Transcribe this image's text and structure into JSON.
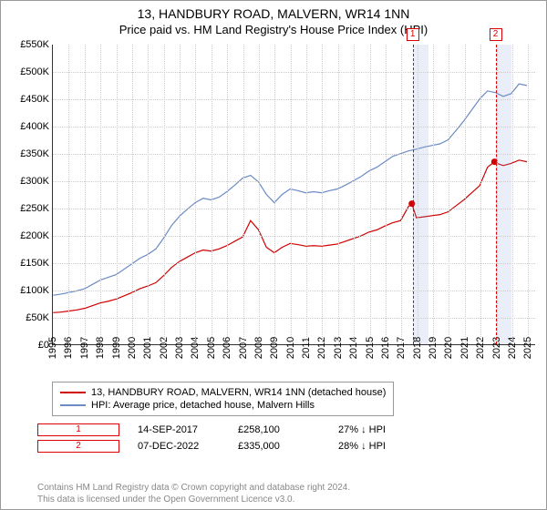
{
  "title": "13, HANDBURY ROAD, MALVERN, WR14 1NN",
  "subtitle": "Price paid vs. HM Land Registry's House Price Index (HPI)",
  "chart": {
    "type": "line",
    "xlim": [
      1995,
      2025.5
    ],
    "ylim": [
      0,
      550000
    ],
    "yticks": [
      0,
      50000,
      100000,
      150000,
      200000,
      250000,
      300000,
      350000,
      400000,
      450000,
      500000,
      550000
    ],
    "yticklabels": [
      "£0",
      "£50K",
      "£100K",
      "£150K",
      "£200K",
      "£250K",
      "£300K",
      "£350K",
      "£400K",
      "£450K",
      "£500K",
      "£550K"
    ],
    "xticks": [
      1995,
      1996,
      1997,
      1998,
      1999,
      2000,
      2001,
      2002,
      2003,
      2004,
      2005,
      2006,
      2007,
      2008,
      2009,
      2010,
      2011,
      2012,
      2013,
      2014,
      2015,
      2016,
      2017,
      2018,
      2019,
      2020,
      2021,
      2022,
      2023,
      2024,
      2025
    ],
    "grid_color": "#cccccc",
    "background_color": "#ffffff",
    "shaded_regions": [
      {
        "from": 2017.71,
        "to": 2018.71
      },
      {
        "from": 2022.94,
        "to": 2023.94
      }
    ],
    "shade_color": "rgba(135,162,214,0.18)",
    "series": [
      {
        "name": "hpi",
        "label": "HPI: Average price, detached house, Malvern Hills",
        "color": "#6a8bc5",
        "width": 1.2,
        "data": [
          [
            1995,
            90000
          ],
          [
            1995.5,
            92000
          ],
          [
            1996,
            95000
          ],
          [
            1996.5,
            98000
          ],
          [
            1997,
            102000
          ],
          [
            1997.5,
            110000
          ],
          [
            1998,
            118000
          ],
          [
            1998.5,
            123000
          ],
          [
            1999,
            128000
          ],
          [
            1999.5,
            138000
          ],
          [
            2000,
            148000
          ],
          [
            2000.5,
            158000
          ],
          [
            2001,
            165000
          ],
          [
            2001.5,
            175000
          ],
          [
            2002,
            195000
          ],
          [
            2002.5,
            218000
          ],
          [
            2003,
            235000
          ],
          [
            2003.5,
            248000
          ],
          [
            2004,
            260000
          ],
          [
            2004.5,
            268000
          ],
          [
            2005,
            265000
          ],
          [
            2005.5,
            270000
          ],
          [
            2006,
            280000
          ],
          [
            2006.5,
            292000
          ],
          [
            2007,
            305000
          ],
          [
            2007.5,
            310000
          ],
          [
            2008,
            298000
          ],
          [
            2008.5,
            275000
          ],
          [
            2009,
            260000
          ],
          [
            2009.5,
            275000
          ],
          [
            2010,
            285000
          ],
          [
            2010.5,
            282000
          ],
          [
            2011,
            278000
          ],
          [
            2011.5,
            280000
          ],
          [
            2012,
            278000
          ],
          [
            2012.5,
            282000
          ],
          [
            2013,
            285000
          ],
          [
            2013.5,
            292000
          ],
          [
            2014,
            300000
          ],
          [
            2014.5,
            308000
          ],
          [
            2015,
            318000
          ],
          [
            2015.5,
            325000
          ],
          [
            2016,
            335000
          ],
          [
            2016.5,
            345000
          ],
          [
            2017,
            350000
          ],
          [
            2017.5,
            355000
          ],
          [
            2018,
            358000
          ],
          [
            2018.5,
            362000
          ],
          [
            2019,
            365000
          ],
          [
            2019.5,
            368000
          ],
          [
            2020,
            375000
          ],
          [
            2020.5,
            392000
          ],
          [
            2021,
            410000
          ],
          [
            2021.5,
            430000
          ],
          [
            2022,
            450000
          ],
          [
            2022.5,
            465000
          ],
          [
            2023,
            462000
          ],
          [
            2023.5,
            455000
          ],
          [
            2024,
            460000
          ],
          [
            2024.5,
            478000
          ],
          [
            2025,
            475000
          ]
        ]
      },
      {
        "name": "property",
        "label": "13, HANDBURY ROAD, MALVERN, WR14 1NN (detached house)",
        "color": "#d00000",
        "width": 1.2,
        "data": [
          [
            1995,
            58000
          ],
          [
            1995.5,
            59000
          ],
          [
            1996,
            61000
          ],
          [
            1996.5,
            63000
          ],
          [
            1997,
            66000
          ],
          [
            1997.5,
            71000
          ],
          [
            1998,
            76000
          ],
          [
            1998.5,
            79000
          ],
          [
            1999,
            83000
          ],
          [
            1999.5,
            89000
          ],
          [
            2000,
            95000
          ],
          [
            2000.5,
            102000
          ],
          [
            2001,
            107000
          ],
          [
            2001.5,
            113000
          ],
          [
            2002,
            126000
          ],
          [
            2002.5,
            141000
          ],
          [
            2003,
            152000
          ],
          [
            2003.5,
            160000
          ],
          [
            2004,
            168000
          ],
          [
            2004.5,
            173000
          ],
          [
            2005,
            171000
          ],
          [
            2005.5,
            175000
          ],
          [
            2006,
            181000
          ],
          [
            2006.5,
            189000
          ],
          [
            2007,
            197000
          ],
          [
            2007.5,
            227000
          ],
          [
            2008,
            210000
          ],
          [
            2008.5,
            178000
          ],
          [
            2009,
            168000
          ],
          [
            2009.5,
            178000
          ],
          [
            2010,
            185000
          ],
          [
            2010.5,
            183000
          ],
          [
            2011,
            180000
          ],
          [
            2011.5,
            181000
          ],
          [
            2012,
            180000
          ],
          [
            2012.5,
            182000
          ],
          [
            2013,
            184000
          ],
          [
            2013.5,
            189000
          ],
          [
            2014,
            194000
          ],
          [
            2014.5,
            199000
          ],
          [
            2015,
            206000
          ],
          [
            2015.5,
            210000
          ],
          [
            2016,
            217000
          ],
          [
            2016.5,
            223000
          ],
          [
            2017,
            227000
          ],
          [
            2017.5,
            253000
          ],
          [
            2017.71,
            258100
          ],
          [
            2018,
            232000
          ],
          [
            2018.5,
            234000
          ],
          [
            2019,
            236000
          ],
          [
            2019.5,
            238000
          ],
          [
            2020,
            243000
          ],
          [
            2020.5,
            254000
          ],
          [
            2021,
            265000
          ],
          [
            2021.5,
            278000
          ],
          [
            2022,
            291000
          ],
          [
            2022.5,
            325000
          ],
          [
            2022.94,
            335000
          ],
          [
            2023,
            333000
          ],
          [
            2023.5,
            328000
          ],
          [
            2024,
            332000
          ],
          [
            2024.5,
            338000
          ],
          [
            2025,
            335000
          ]
        ]
      }
    ],
    "sale_markers": [
      {
        "n": "1",
        "x": 2017.71,
        "y": 258100
      },
      {
        "n": "2",
        "x": 2022.94,
        "y": 335000
      }
    ]
  },
  "legend": {
    "items": [
      {
        "color": "#d00000",
        "label": "13, HANDBURY ROAD, MALVERN, WR14 1NN (detached house)"
      },
      {
        "color": "#6a8bc5",
        "label": "HPI: Average price, detached house, Malvern Hills"
      }
    ]
  },
  "sales": [
    {
      "n": "1",
      "date": "14-SEP-2017",
      "price": "£258,100",
      "delta": "27% ↓ HPI"
    },
    {
      "n": "2",
      "date": "07-DEC-2022",
      "price": "£335,000",
      "delta": "28% ↓ HPI"
    }
  ],
  "footer": {
    "l1": "Contains HM Land Registry data © Crown copyright and database right 2024.",
    "l2": "This data is licensed under the Open Government Licence v3.0."
  }
}
